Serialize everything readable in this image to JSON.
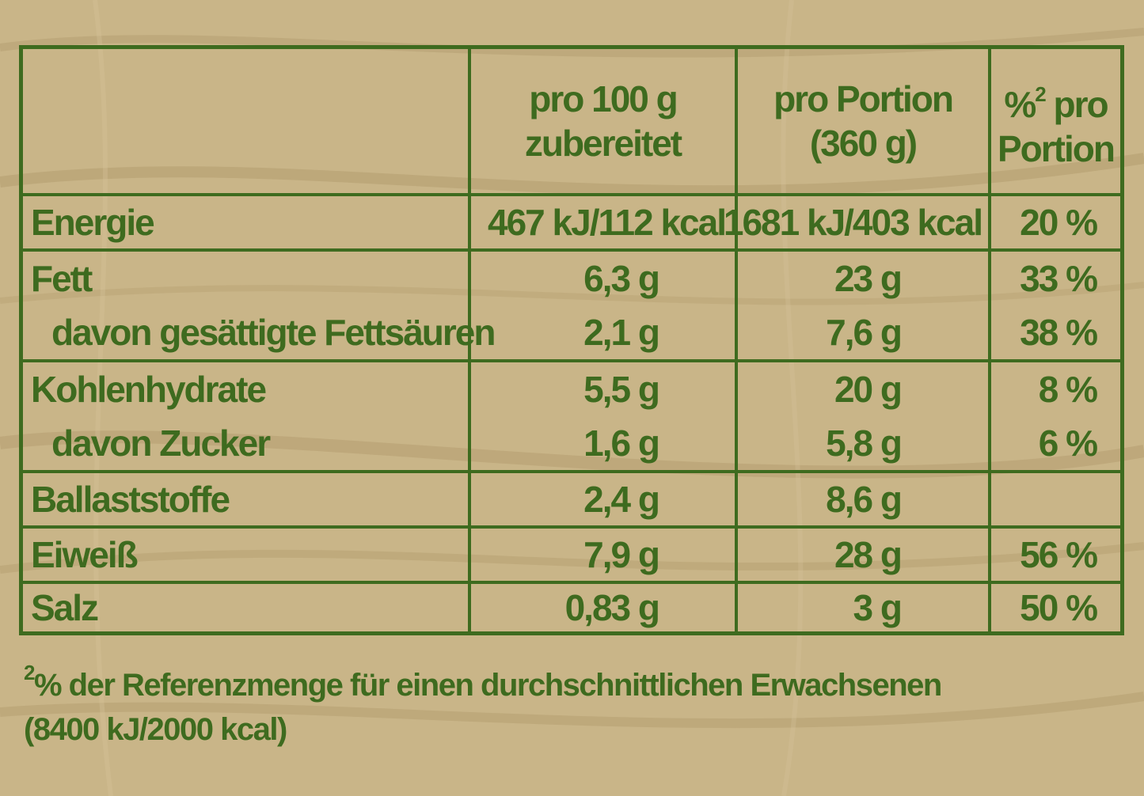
{
  "colors": {
    "text": "#3e6b1f",
    "background": "#c9b588"
  },
  "header": {
    "col1_line1": "pro 100 g",
    "col1_line2": "zubereitet",
    "col2_line1": "pro Portion",
    "col2_line2": "(360 g)",
    "col3_sup": "2",
    "col3_line1_prefix": "%",
    "col3_line1_suffix": " pro",
    "col3_line2": "Portion"
  },
  "rows": [
    {
      "label": "Energie",
      "per100": "467 kJ/112 kcal",
      "perPortion": "1681 kJ/403 kcal",
      "percent": "20 %"
    },
    {
      "label": "Fett",
      "per100": "6,3 g",
      "perPortion": "23 g",
      "percent": "33 %"
    },
    {
      "label": "davon gesättigte Fettsäuren",
      "per100": "2,1 g",
      "perPortion": "7,6 g",
      "percent": "38 %"
    },
    {
      "label": "Kohlenhydrate",
      "per100": "5,5 g",
      "perPortion": "20 g",
      "percent": "8 %"
    },
    {
      "label": "davon Zucker",
      "per100": "1,6 g",
      "perPortion": "5,8 g",
      "percent": "6 %"
    },
    {
      "label": "Ballaststoffe",
      "per100": "2,4 g",
      "perPortion": "8,6 g",
      "percent": ""
    },
    {
      "label": "Eiweiß",
      "per100": "7,9 g",
      "perPortion": "28 g",
      "percent": "56 %"
    },
    {
      "label": "Salz",
      "per100": "0,83 g",
      "perPortion": "3 g",
      "percent": "50 %"
    }
  ],
  "footnote": {
    "sup": "2",
    "line1": "% der Referenzmenge für einen durchschnittlichen Erwachsenen",
    "line2": "(8400 kJ/2000 kcal)"
  }
}
